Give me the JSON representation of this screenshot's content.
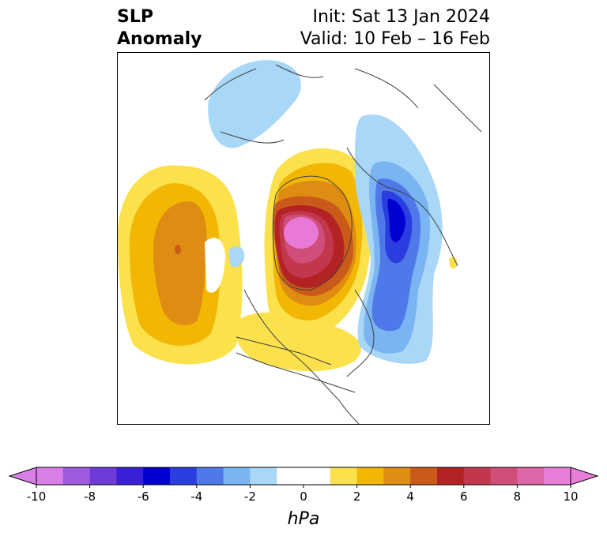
{
  "title": {
    "left_line1": "SLP",
    "left_line2": "Anomaly",
    "right_line1": "Init: Sat 13 Jan 2024",
    "right_line2": "Valid: 10 Feb – 16 Feb"
  },
  "colorbar": {
    "unit_label": "hPa",
    "min": -10,
    "max": 10,
    "step": 1,
    "tick_labels": [
      "-10",
      "-8",
      "-6",
      "-4",
      "-2",
      "0",
      "2",
      "4",
      "6",
      "8",
      "10"
    ],
    "extend": "both",
    "colors": {
      "neg_below": "#d87ee6",
      "neg": [
        "#d87ee6",
        "#9e5ae0",
        "#6e3ad8",
        "#3a1fd8",
        "#0000d0",
        "#2a3ee0",
        "#4f79e8",
        "#7ab4f2",
        "#a9d7f7"
      ],
      "zero": "#ffffff",
      "pos": [
        "#fbe14c",
        "#f2b705",
        "#de8c12",
        "#c95a1a",
        "#b42323",
        "#c2374e",
        "#cf4f7a",
        "#dc66a8",
        "#e77ed8"
      ],
      "pos_above": "#e77ed8"
    }
  },
  "map": {
    "projection": "north polar stereographic",
    "anomaly_colors": {
      "strong_positive": "#e879d6",
      "positive_red": "#b42323",
      "positive_orange": "#de8c12",
      "positive_yellow": "#fbe14c",
      "negative_blue": "#2a3ee0",
      "negative_light": "#a9d7f7"
    }
  }
}
